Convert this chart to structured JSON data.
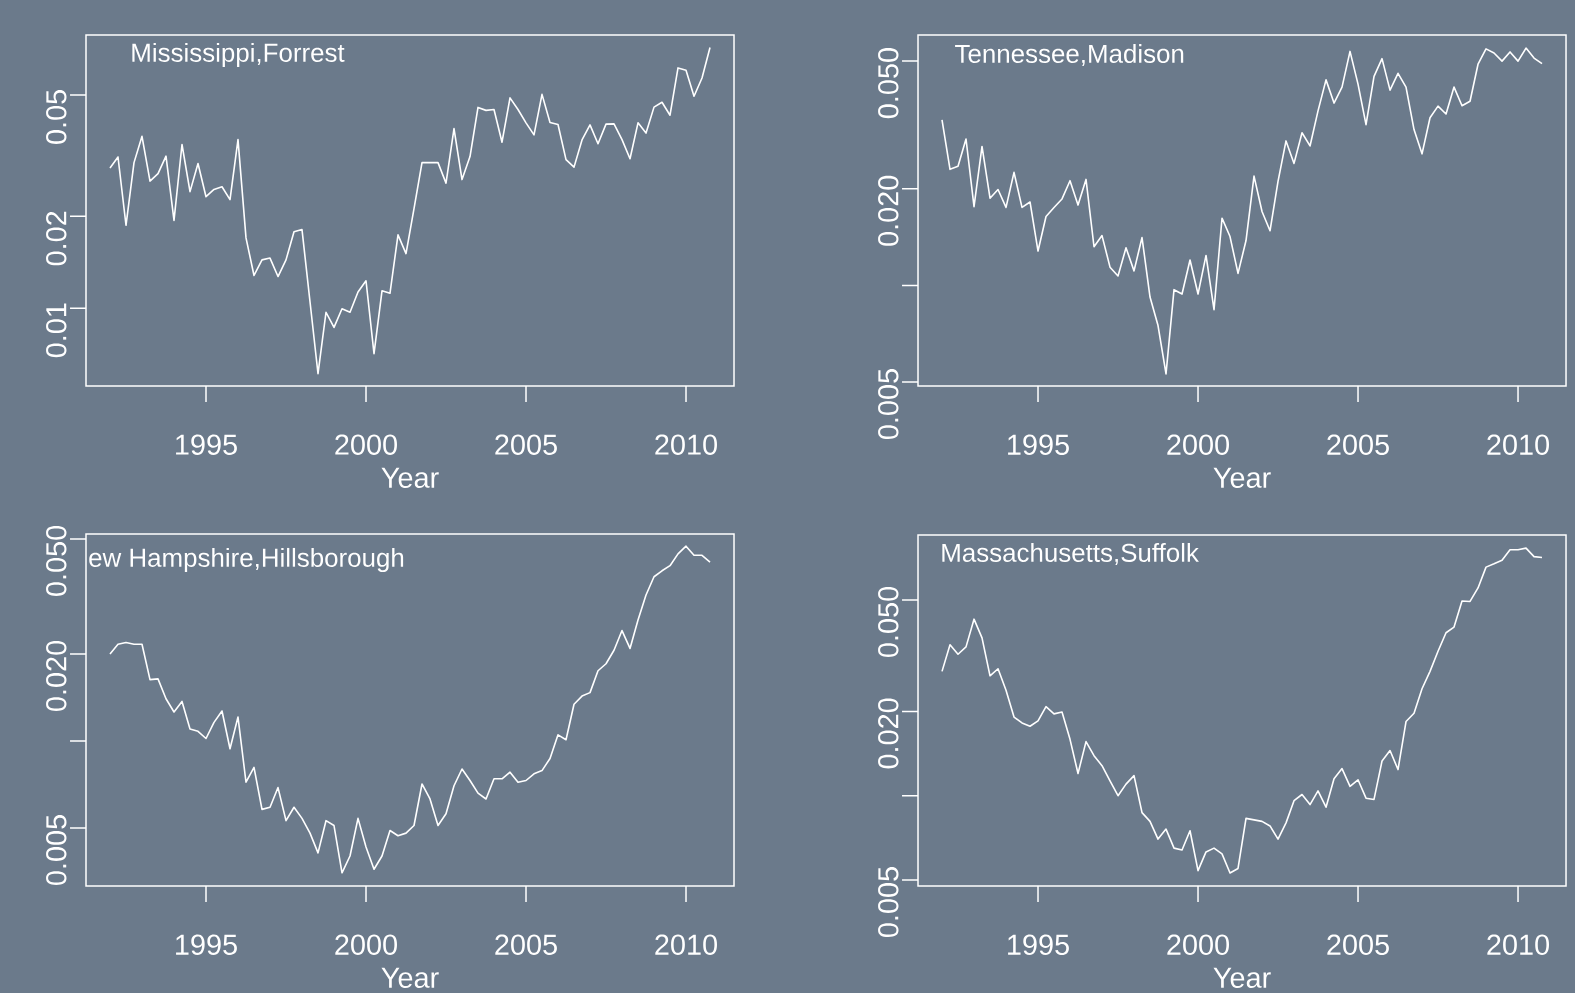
{
  "chart_data": [
    {
      "type": "line",
      "title": "Mississippi,Forrest",
      "xlabel": "Year",
      "log": "y",
      "xlim": [
        1991.25,
        2011.5
      ],
      "ylim": [
        0.00556,
        0.0786
      ],
      "xticks": [
        1995,
        2000,
        2005,
        2010
      ],
      "yticks": [
        0.01,
        0.02,
        0.05
      ],
      "x": [
        1992.0,
        1992.25,
        1992.5,
        1992.75,
        1993.0,
        1993.25,
        1993.5,
        1993.75,
        1994.0,
        1994.25,
        1994.5,
        1994.75,
        1995.0,
        1995.25,
        1995.5,
        1995.75,
        1996.0,
        1996.25,
        1996.5,
        1996.75,
        1997.0,
        1997.25,
        1997.5,
        1997.75,
        1998.0,
        1998.25,
        1998.5,
        1998.75,
        1999.0,
        1999.25,
        1999.5,
        1999.75,
        2000.0,
        2000.25,
        2000.5,
        2000.75,
        2001.0,
        2001.25,
        2001.5,
        2001.75,
        2002.0,
        2002.25,
        2002.5,
        2002.75,
        2003.0,
        2003.25,
        2003.5,
        2003.75,
        2004.0,
        2004.25,
        2004.5,
        2004.75,
        2005.0,
        2005.25,
        2005.5,
        2005.75,
        2006.0,
        2006.25,
        2006.5,
        2006.75,
        2007.0,
        2007.25,
        2007.5,
        2007.75,
        2008.0,
        2008.25,
        2008.5,
        2008.75,
        2009.0,
        2009.25,
        2009.5,
        2009.75,
        2010.0,
        2010.25,
        2010.5,
        2010.75
      ],
      "series": [
        {
          "color": "#ffffff",
          "values": [
            0.0288,
            0.0313,
            0.0187,
            0.03,
            0.0366,
            0.0261,
            0.0276,
            0.0315,
            0.0194,
            0.0344,
            0.0241,
            0.0298,
            0.0232,
            0.0245,
            0.025,
            0.0227,
            0.0357,
            0.017,
            0.0128,
            0.0144,
            0.0146,
            0.0127,
            0.0144,
            0.0178,
            0.0181,
            0.0105,
            0.0061,
            0.0097,
            0.00865,
            0.00996,
            0.0097,
            0.0113,
            0.0123,
            0.0071,
            0.0114,
            0.0112,
            0.0174,
            0.0151,
            0.0212,
            0.03,
            0.03,
            0.03,
            0.0257,
            0.0388,
            0.0264,
            0.0314,
            0.0455,
            0.0445,
            0.0448,
            0.035,
            0.0489,
            0.0448,
            0.0405,
            0.037,
            0.0502,
            0.0406,
            0.04,
            0.0307,
            0.029,
            0.0356,
            0.0399,
            0.0346,
            0.0401,
            0.0402,
            0.0357,
            0.0309,
            0.0405,
            0.0375,
            0.0456,
            0.0473,
            0.0429,
            0.0613,
            0.0602,
            0.0495,
            0.0568,
            0.0715
          ]
        }
      ]
    },
    {
      "type": "line",
      "title": "Tennessee,Madison",
      "xlabel": "Year",
      "log": "y",
      "xlim": [
        1991.25,
        2011.5
      ],
      "ylim": [
        0.00486,
        0.0603
      ],
      "xticks": [
        1995,
        2000,
        2005,
        2010
      ],
      "yticks": [
        {
          "value": 0.005,
          "label": "0.005"
        },
        {
          "value": 0.01,
          "label": null
        },
        {
          "value": 0.02,
          "label": "0.020"
        },
        {
          "value": 0.05,
          "label": "0.050"
        }
      ],
      "x": [
        1992.0,
        1992.25,
        1992.5,
        1992.75,
        1993.0,
        1993.25,
        1993.5,
        1993.75,
        1994.0,
        1994.25,
        1994.5,
        1994.75,
        1995.0,
        1995.25,
        1995.5,
        1995.75,
        1996.0,
        1996.25,
        1996.5,
        1996.75,
        1997.0,
        1997.25,
        1997.5,
        1997.75,
        1998.0,
        1998.25,
        1998.5,
        1998.75,
        1999.0,
        1999.25,
        1999.5,
        1999.75,
        2000.0,
        2000.25,
        2000.5,
        2000.75,
        2001.0,
        2001.25,
        2001.5,
        2001.75,
        2002.0,
        2002.25,
        2002.5,
        2002.75,
        2003.0,
        2003.25,
        2003.5,
        2003.75,
        2004.0,
        2004.25,
        2004.5,
        2004.75,
        2005.0,
        2005.25,
        2005.5,
        2005.75,
        2006.0,
        2006.25,
        2006.5,
        2006.75,
        2007.0,
        2007.25,
        2007.5,
        2007.75,
        2008.0,
        2008.25,
        2008.5,
        2008.75,
        2009.0,
        2009.25,
        2009.5,
        2009.75,
        2010.0,
        2010.25,
        2010.5,
        2010.75
      ],
      "series": [
        {
          "color": "#ffffff",
          "values": [
            0.0328,
            0.023,
            0.0235,
            0.0286,
            0.0176,
            0.0271,
            0.0187,
            0.0199,
            0.0175,
            0.0225,
            0.0175,
            0.0182,
            0.0128,
            0.0164,
            0.0175,
            0.0186,
            0.0212,
            0.0178,
            0.0214,
            0.0132,
            0.0143,
            0.0114,
            0.0107,
            0.0131,
            0.0111,
            0.0141,
            0.0092,
            0.0075,
            0.0053,
            0.0097,
            0.0094,
            0.012,
            0.0094,
            0.0124,
            0.0084,
            0.0162,
            0.0142,
            0.0109,
            0.0138,
            0.0219,
            0.017,
            0.0148,
            0.0211,
            0.0282,
            0.024,
            0.0299,
            0.0272,
            0.035,
            0.0437,
            0.037,
            0.0415,
            0.0536,
            0.0424,
            0.0317,
            0.0448,
            0.0509,
            0.0406,
            0.0458,
            0.0415,
            0.0306,
            0.0257,
            0.0333,
            0.0362,
            0.0342,
            0.0415,
            0.0363,
            0.0375,
            0.0489,
            0.0546,
            0.053,
            0.05,
            0.0534,
            0.05,
            0.0549,
            0.0511,
            0.0491
          ]
        }
      ]
    },
    {
      "type": "line",
      "title": "ew Hampshire,Hillsborough",
      "xlabel": "Year",
      "log": "y",
      "xlim": [
        1991.25,
        2011.5
      ],
      "ylim": [
        0.00315,
        0.052
      ],
      "xticks": [
        1995,
        2000,
        2005,
        2010
      ],
      "yticks": [
        {
          "value": 0.005,
          "label": "0.005"
        },
        {
          "value": 0.01,
          "label": null
        },
        {
          "value": 0.02,
          "label": "0.020"
        },
        {
          "value": 0.05,
          "label": "0.050"
        }
      ],
      "x": [
        1992.0,
        1992.25,
        1992.5,
        1992.75,
        1993.0,
        1993.25,
        1993.5,
        1993.75,
        1994.0,
        1994.25,
        1994.5,
        1994.75,
        1995.0,
        1995.25,
        1995.5,
        1995.75,
        1996.0,
        1996.25,
        1996.5,
        1996.75,
        1997.0,
        1997.25,
        1997.5,
        1997.75,
        1998.0,
        1998.25,
        1998.5,
        1998.75,
        1999.0,
        1999.25,
        1999.5,
        1999.75,
        2000.0,
        2000.25,
        2000.5,
        2000.75,
        2001.0,
        2001.25,
        2001.5,
        2001.75,
        2002.0,
        2002.25,
        2002.5,
        2002.75,
        2003.0,
        2003.25,
        2003.5,
        2003.75,
        2004.0,
        2004.25,
        2004.5,
        2004.75,
        2005.0,
        2005.25,
        2005.5,
        2005.75,
        2006.0,
        2006.25,
        2006.5,
        2006.75,
        2007.0,
        2007.25,
        2007.5,
        2007.75,
        2008.0,
        2008.25,
        2008.5,
        2008.75,
        2009.0,
        2009.25,
        2009.5,
        2009.75,
        2010.0,
        2010.25,
        2010.5,
        2010.75
      ],
      "series": [
        {
          "color": "#ffffff",
          "values": [
            0.02,
            0.0216,
            0.0219,
            0.0216,
            0.0216,
            0.0163,
            0.0164,
            0.014,
            0.0126,
            0.0137,
            0.011,
            0.0108,
            0.0102,
            0.0116,
            0.0127,
            0.0094,
            0.0121,
            0.0072,
            0.0081,
            0.0058,
            0.0059,
            0.0069,
            0.0053,
            0.0059,
            0.0054,
            0.0048,
            0.0041,
            0.0053,
            0.0051,
            0.0035,
            0.004,
            0.0054,
            0.0043,
            0.0036,
            0.004,
            0.0049,
            0.0047,
            0.0048,
            0.0051,
            0.0071,
            0.0063,
            0.0051,
            0.0056,
            0.007,
            0.008,
            0.0073,
            0.0066,
            0.0063,
            0.0074,
            0.0074,
            0.0078,
            0.0072,
            0.0073,
            0.0077,
            0.0079,
            0.0087,
            0.0105,
            0.0101,
            0.0134,
            0.0143,
            0.0147,
            0.0175,
            0.0185,
            0.0206,
            0.0241,
            0.0209,
            0.0262,
            0.032,
            0.037,
            0.0388,
            0.0404,
            0.0444,
            0.0472,
            0.0439,
            0.0439,
            0.0416
          ]
        }
      ]
    },
    {
      "type": "line",
      "title": "Massachusetts,Suffolk",
      "xlabel": "Year",
      "log": "y",
      "xlim": [
        1991.25,
        2011.5
      ],
      "ylim": [
        0.00476,
        0.0853
      ],
      "xticks": [
        1995,
        2000,
        2005,
        2010
      ],
      "yticks": [
        {
          "value": 0.005,
          "label": "0.005"
        },
        {
          "value": 0.01,
          "label": null
        },
        {
          "value": 0.02,
          "label": "0.020"
        },
        {
          "value": 0.05,
          "label": "0.050"
        }
      ],
      "x": [
        1992.0,
        1992.25,
        1992.5,
        1992.75,
        1993.0,
        1993.25,
        1993.5,
        1993.75,
        1994.0,
        1994.25,
        1994.5,
        1994.75,
        1995.0,
        1995.25,
        1995.5,
        1995.75,
        1996.0,
        1996.25,
        1996.5,
        1996.75,
        1997.0,
        1997.25,
        1997.5,
        1997.75,
        1998.0,
        1998.25,
        1998.5,
        1998.75,
        1999.0,
        1999.25,
        1999.5,
        1999.75,
        2000.0,
        2000.25,
        2000.5,
        2000.75,
        2001.0,
        2001.25,
        2001.5,
        2001.75,
        2002.0,
        2002.25,
        2002.5,
        2002.75,
        2003.0,
        2003.25,
        2003.5,
        2003.75,
        2004.0,
        2004.25,
        2004.5,
        2004.75,
        2005.0,
        2005.25,
        2005.5,
        2005.75,
        2006.0,
        2006.25,
        2006.5,
        2006.75,
        2007.0,
        2007.25,
        2007.5,
        2007.75,
        2008.0,
        2008.25,
        2008.5,
        2008.75,
        2009.0,
        2009.25,
        2009.5,
        2009.75,
        2010.0,
        2010.25,
        2010.5,
        2010.75
      ],
      "series": [
        {
          "color": "#ffffff",
          "values": [
            0.0278,
            0.0346,
            0.032,
            0.034,
            0.0427,
            0.0366,
            0.0268,
            0.0284,
            0.0238,
            0.0191,
            0.0182,
            0.0177,
            0.0185,
            0.0208,
            0.0196,
            0.0199,
            0.0159,
            0.012,
            0.0156,
            0.0139,
            0.0128,
            0.0113,
            0.01,
            0.011,
            0.0118,
            0.0087,
            0.0081,
            0.007,
            0.0076,
            0.0065,
            0.0064,
            0.0075,
            0.0054,
            0.0063,
            0.0065,
            0.0062,
            0.0053,
            0.0055,
            0.0083,
            0.0082,
            0.0081,
            0.0078,
            0.007,
            0.008,
            0.0096,
            0.0101,
            0.0093,
            0.0104,
            0.0091,
            0.0115,
            0.0125,
            0.0108,
            0.0114,
            0.0098,
            0.0097,
            0.0133,
            0.0145,
            0.0124,
            0.0184,
            0.0197,
            0.0241,
            0.0278,
            0.0328,
            0.0382,
            0.04,
            0.0496,
            0.0494,
            0.0552,
            0.0655,
            0.0673,
            0.0693,
            0.0756,
            0.0756,
            0.0766,
            0.0714,
            0.0709
          ]
        }
      ]
    }
  ]
}
